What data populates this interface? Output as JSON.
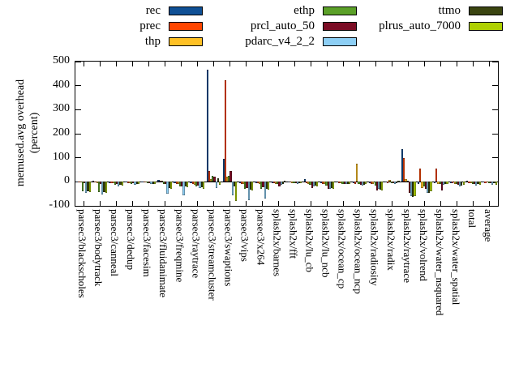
{
  "ylabel": {
    "line1": "memused.avg overhead",
    "line2": "(percent)"
  },
  "chart_data": {
    "type": "bar",
    "title": "",
    "xlabel": "",
    "ylabel": "memused.avg overhead (percent)",
    "ylim": [
      -100,
      500
    ],
    "yticks": [
      500,
      400,
      300,
      200,
      100,
      0,
      -100
    ],
    "grid": false,
    "legend_position": "top-center-3-columns",
    "legend_columns": [
      [
        "rec",
        "prec",
        "thp"
      ],
      [
        "ethp",
        "prcl_auto_50",
        "pdarc_v4_2_2"
      ],
      [
        "ttmo",
        "plrus_auto_7000"
      ]
    ],
    "categories": [
      "parsec3/blackscholes",
      "parsec3/bodytrack",
      "parsec3/canneal",
      "parsec3/dedup",
      "parsec3/facesim",
      "parsec3/fluidanimate",
      "parsec3/freqmine",
      "parsec3/raytrace",
      "parsec3/streamcluster",
      "parsec3/swaptions",
      "parsec3/vips",
      "parsec3/x264",
      "splash2x/barnes",
      "splash2x/fft",
      "splash2x/lu_cb",
      "splash2x/lu_ncb",
      "splash2x/ocean_cp",
      "splash2x/ocean_ncp",
      "splash2x/radiosity",
      "splash2x/radix",
      "splash2x/raytrace",
      "splash2x/volrend",
      "splash2x/water_nsquared",
      "splash2x/water_spatial",
      "total",
      "average"
    ],
    "series": [
      {
        "name": "rec",
        "color": "#0f5095",
        "values": [
          -2,
          4,
          -4,
          -3,
          -2,
          8,
          -5,
          -5,
          465,
          95,
          -5,
          -4,
          -5,
          -2,
          10,
          -5,
          -3,
          -5,
          -5,
          -3,
          135,
          -10,
          -5,
          -4,
          3,
          -3
        ]
      },
      {
        "name": "prec",
        "color": "#ff4500",
        "values": [
          -3,
          -3,
          -5,
          -4,
          -3,
          6,
          -8,
          -10,
          45,
          424,
          -8,
          -6,
          -6,
          -3,
          -5,
          -8,
          -5,
          -8,
          -8,
          -4,
          100,
          55,
          55,
          -6,
          -4,
          -4
        ]
      },
      {
        "name": "thp",
        "color": "#ffc125",
        "values": [
          -3,
          -5,
          -6,
          -5,
          -3,
          5,
          -10,
          -12,
          12,
          20,
          -10,
          -8,
          -8,
          -4,
          -8,
          -10,
          -6,
          75,
          -10,
          8,
          10,
          -25,
          -8,
          -8,
          -5,
          -3
        ]
      },
      {
        "name": "ethp",
        "color": "#5ba028",
        "values": [
          -38,
          -42,
          -12,
          -8,
          -6,
          -10,
          -18,
          -18,
          25,
          25,
          -30,
          -28,
          -10,
          -5,
          -12,
          -15,
          -8,
          -10,
          -15,
          -5,
          5,
          -20,
          -10,
          -10,
          -8,
          -6
        ]
      },
      {
        "name": "prcl_auto_50",
        "color": "#7b0c24",
        "values": [
          -6,
          -8,
          -8,
          -6,
          -4,
          -8,
          -20,
          -15,
          20,
          45,
          -25,
          -22,
          -20,
          -6,
          -25,
          -28,
          -8,
          -12,
          -35,
          -6,
          -45,
          -30,
          -35,
          -12,
          -8,
          -5
        ]
      },
      {
        "name": "pdarc_v4_2_2",
        "color": "#8dcff5",
        "values": [
          -46,
          -52,
          -18,
          -13,
          -10,
          -50,
          -55,
          -25,
          -25,
          -55,
          -75,
          -70,
          -12,
          -8,
          -20,
          -30,
          -10,
          -15,
          -30,
          -8,
          -60,
          -45,
          -12,
          -20,
          -15,
          -13
        ]
      },
      {
        "name": "ttmo",
        "color": "#3a4410",
        "values": [
          -40,
          -44,
          -14,
          -9,
          -8,
          -25,
          -20,
          -22,
          15,
          -20,
          -32,
          -30,
          -8,
          -5,
          -15,
          -25,
          -8,
          -12,
          -32,
          -6,
          -62,
          -45,
          -10,
          -15,
          -10,
          -7
        ]
      },
      {
        "name": "plrus_auto_7000",
        "color": "#aed000",
        "values": [
          -42,
          -46,
          -15,
          -10,
          -8,
          -28,
          -22,
          -28,
          -12,
          -80,
          -35,
          -32,
          5,
          -4,
          -18,
          -28,
          -8,
          -10,
          -35,
          5,
          -60,
          -40,
          -8,
          -12,
          -12,
          -12
        ]
      }
    ]
  }
}
